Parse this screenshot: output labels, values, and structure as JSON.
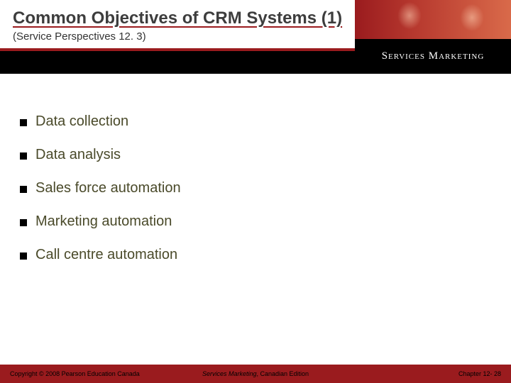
{
  "header": {
    "title": "Common Objectives of CRM Systems (1)",
    "subtitle": "(Service Perspectives 12. 3)",
    "brand": "Services Marketing"
  },
  "bullets": [
    "Data collection",
    "Data analysis",
    "Sales force automation",
    " Marketing automation",
    "Call centre automation"
  ],
  "footer": {
    "left": "Copyright © 2008 Pearson Education Canada",
    "center_title": "Services Marketing",
    "center_rest": ", Canadian Edition",
    "right": "Chapter 12- 28"
  },
  "colors": {
    "brand_red": "#9a1b1e",
    "black": "#000000",
    "text_olive": "#4a4a2a",
    "title_gray": "#3d3d3d"
  }
}
